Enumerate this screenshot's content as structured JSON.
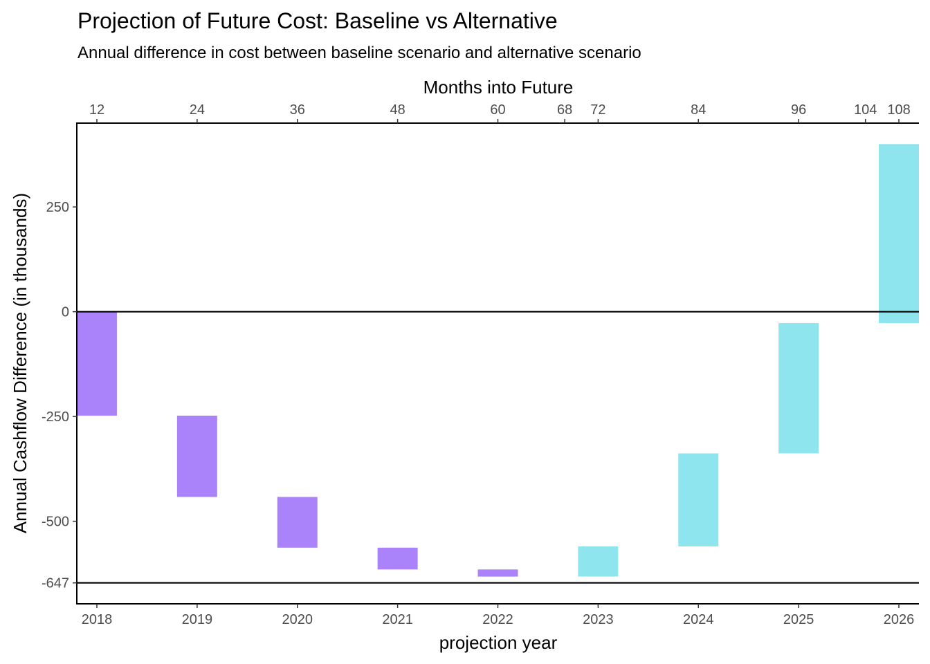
{
  "chart_data": {
    "type": "bar",
    "subtype": "waterfall",
    "title": "Projection of Future Cost: Baseline vs Alternative",
    "subtitle": "Annual difference in cost between baseline scenario and alternative scenario",
    "xlabel": "projection year",
    "ylabel": "Annual Cashflow Difference (in thousands)",
    "secondary_xlabel": "Months into Future",
    "categories": [
      "2018",
      "2019",
      "2020",
      "2021",
      "2022",
      "2023",
      "2024",
      "2025",
      "2026"
    ],
    "bars": [
      {
        "year": 2018,
        "start": 0,
        "end": -248,
        "color": "#aa82fa"
      },
      {
        "year": 2019,
        "start": -248,
        "end": -442,
        "color": "#aa82fa"
      },
      {
        "year": 2020,
        "start": -442,
        "end": -563,
        "color": "#aa82fa"
      },
      {
        "year": 2021,
        "start": -563,
        "end": -615,
        "color": "#aa82fa"
      },
      {
        "year": 2022,
        "start": -615,
        "end": -632,
        "color": "#aa82fa"
      },
      {
        "year": 2023,
        "start": -632,
        "end": -560,
        "color": "#8ee5ee"
      },
      {
        "year": 2024,
        "start": -560,
        "end": -338,
        "color": "#8ee5ee"
      },
      {
        "year": 2025,
        "start": -338,
        "end": -27,
        "color": "#8ee5ee"
      },
      {
        "year": 2026,
        "start": -27,
        "end": 400,
        "color": "#8ee5ee"
      }
    ],
    "y_ticks": [
      250,
      0,
      -250,
      -500,
      -647
    ],
    "y_tick_labels": [
      "250",
      "0",
      "-250",
      "-500",
      "-647"
    ],
    "top_axis_ticks": [
      12,
      24,
      36,
      48,
      60,
      68,
      72,
      84,
      96,
      104,
      108
    ],
    "ylim": [
      -697,
      450
    ],
    "xlim_years": [
      2017.8,
      2026.2
    ],
    "reference_lines": [
      0,
      -647
    ],
    "colors": {
      "decreasing": "#aa82fa",
      "increasing": "#8ee5ee"
    },
    "grid": false,
    "legend": "none"
  }
}
